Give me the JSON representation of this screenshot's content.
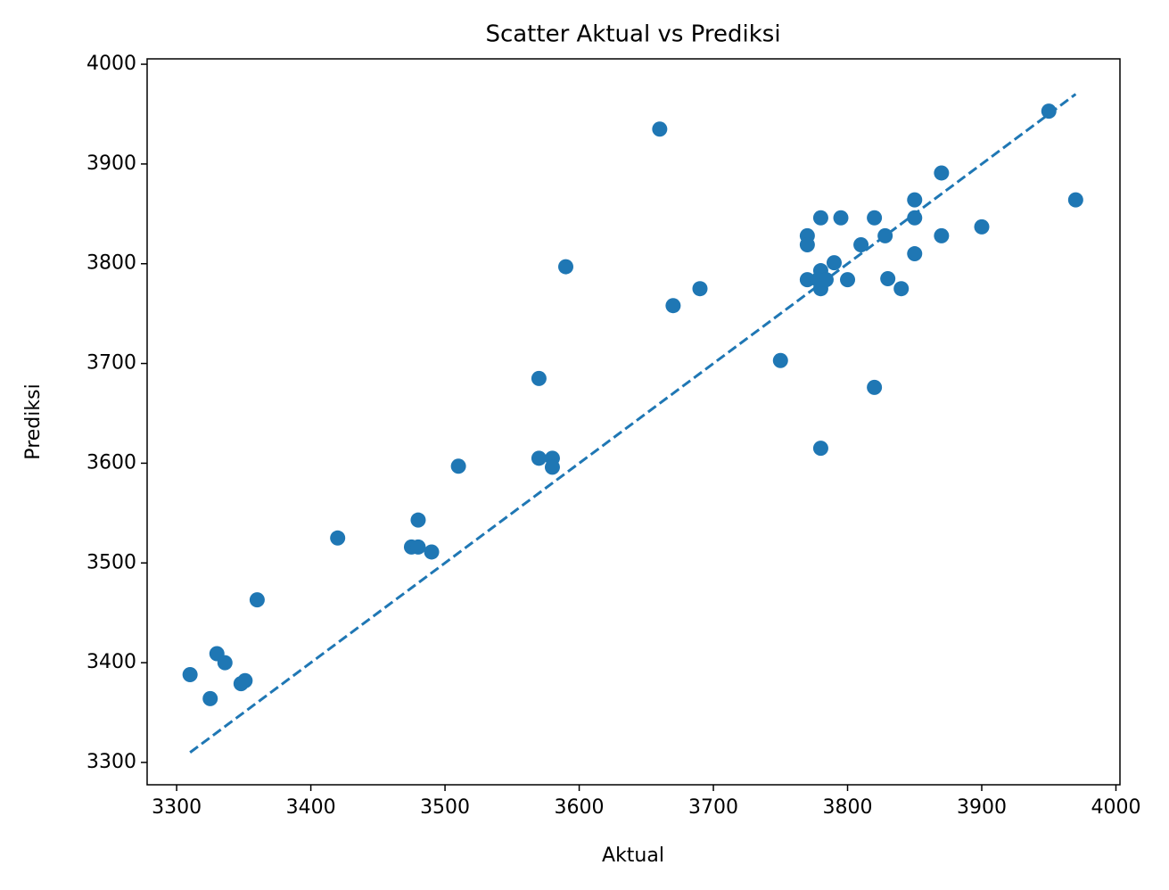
{
  "chart_data": {
    "type": "scatter",
    "title": "Scatter Aktual vs Prediksi",
    "x_label": "Aktual",
    "y_label": "Prediksi",
    "series": [
      {
        "color": "#1f77b4",
        "x": [
          3310,
          3325,
          3330,
          3336,
          3348,
          3351,
          3360,
          3420,
          3475,
          3480,
          3480,
          3490,
          3510,
          3570,
          3570,
          3580,
          3580,
          3590,
          3660,
          3670,
          3690,
          3750,
          3770,
          3770,
          3770,
          3780,
          3780,
          3780,
          3778,
          3784,
          3780,
          3790,
          3795,
          3800,
          3810,
          3820,
          3820,
          3828,
          3830,
          3840,
          3850,
          3850,
          3850,
          3870,
          3870,
          3900,
          3950,
          3970
        ],
        "values": [
          3388,
          3364,
          3409,
          3400,
          3379,
          3382,
          3463,
          3525,
          3516,
          3543,
          3516,
          3511,
          3597,
          3685,
          3605,
          3605,
          3596,
          3797,
          3935,
          3758,
          3775,
          3703,
          3828,
          3819,
          3784,
          3846,
          3793,
          3775,
          3784,
          3784,
          3615,
          3801,
          3846,
          3784,
          3819,
          3846,
          3676,
          3828,
          3785,
          3775,
          3864,
          3846,
          3810,
          3891,
          3828,
          3837,
          3953,
          3864
        ]
      }
    ],
    "reference_line": {
      "x": [
        3310,
        3970
      ],
      "values": [
        3310,
        3970
      ],
      "color": "#1f77b4",
      "style": "dashed"
    },
    "xlim": [
      3278,
      4003
    ],
    "ylim": [
      3277.6,
      4005.4
    ],
    "xticks": [
      3300,
      3400,
      3500,
      3600,
      3700,
      3800,
      3900,
      4000
    ],
    "yticks": [
      3300,
      3400,
      3500,
      3600,
      3700,
      3800,
      3900,
      4000
    ],
    "grid": false
  }
}
